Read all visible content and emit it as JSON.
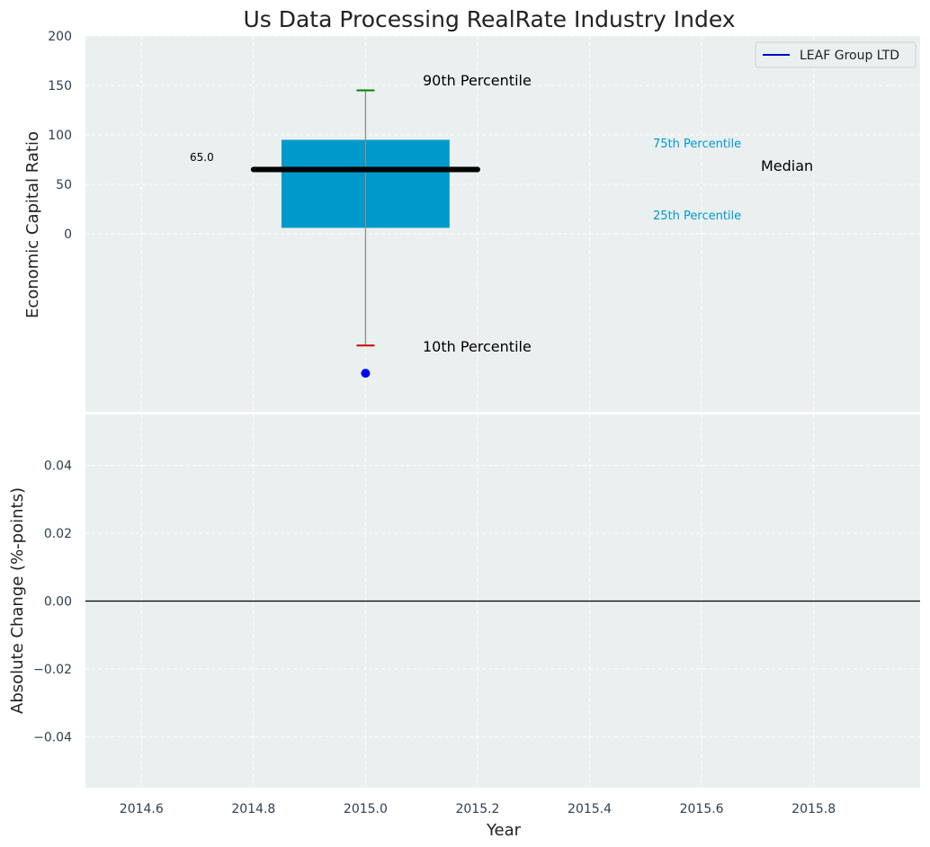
{
  "colors": {
    "background": "#eaeff0",
    "grid": "#ffffff",
    "box": "#0099cc",
    "median": "#000000",
    "whisker": "#8c8c8c",
    "p90_cap": "#008000",
    "p10_cap": "#cc0000",
    "company_point": "#0000ee",
    "legend_line": "#0000cc",
    "percentile_label_small": "#0099cc",
    "zero_line": "#000000"
  },
  "chart_data": [
    {
      "type": "box",
      "title": "Us Data Processing RealRate Industry Index",
      "xlabel": "",
      "ylabel": "Economic Capital Ratio",
      "xlim": [
        2014.5,
        2015.99
      ],
      "ylim": [
        -180,
        200
      ],
      "y_ticks": [
        0,
        50,
        100,
        150,
        200
      ],
      "grid": true,
      "legend": {
        "placement": "top-right",
        "entries": [
          {
            "label": "LEAF Group LTD",
            "marker": "line"
          }
        ]
      },
      "box": {
        "x": 2015.0,
        "x_range": [
          2014.85,
          2015.15
        ],
        "q1": 6,
        "q3": 95,
        "median": 65,
        "median_x_range": [
          2014.8,
          2015.2
        ],
        "p10": -113,
        "p90": 145,
        "median_label": "65.0"
      },
      "company_point": {
        "x": 2015.0,
        "y": -141
      },
      "annotations": {
        "p90": "90th Percentile",
        "p10": "10th Percentile",
        "p75": "75th Percentile",
        "p25": "25th Percentile",
        "median": "Median"
      }
    },
    {
      "type": "line",
      "xlabel": "Year",
      "ylabel": "Absolute Change (%-points)",
      "xlim": [
        2014.5,
        2015.99
      ],
      "ylim": [
        -0.055,
        0.055
      ],
      "x_ticks": [
        2014.6,
        2014.8,
        2015.0,
        2015.2,
        2015.4,
        2015.6,
        2015.8
      ],
      "x_tick_labels": [
        "2014.6",
        "2014.8",
        "2015.0",
        "2015.2",
        "2015.4",
        "2015.6",
        "2015.8"
      ],
      "y_ticks": [
        0.04,
        0.02,
        0.0,
        -0.02,
        -0.04
      ],
      "y_tick_labels": [
        "0.04",
        "0.02",
        "0.00",
        "−0.02",
        "−0.04"
      ],
      "grid": true,
      "reference_line": 0.0,
      "series": []
    }
  ]
}
